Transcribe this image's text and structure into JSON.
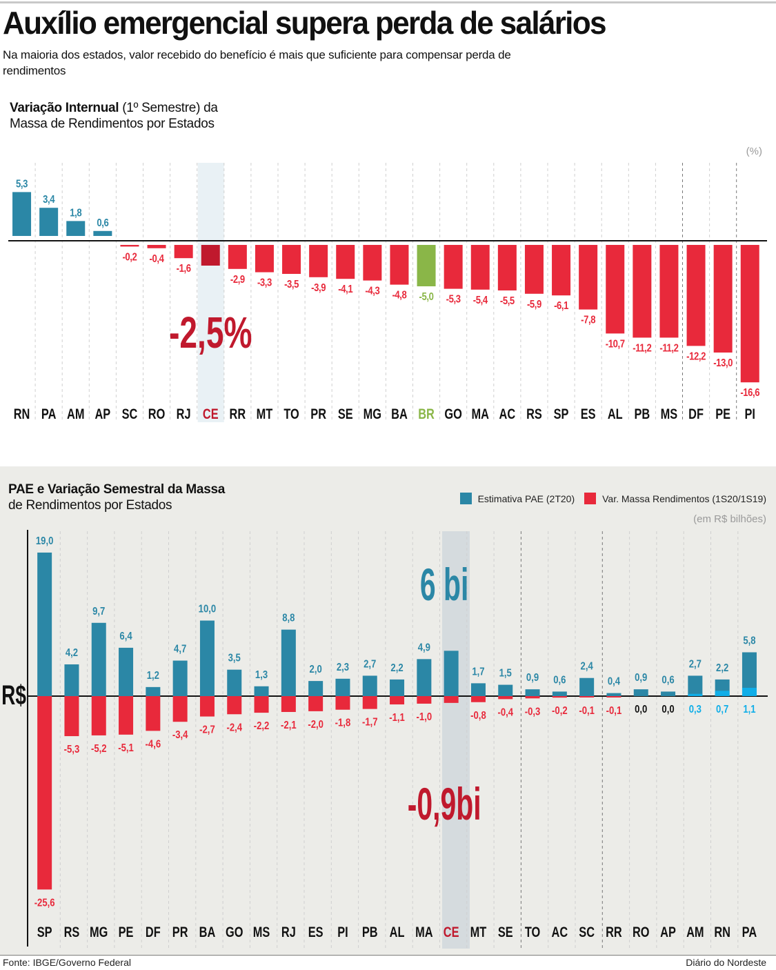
{
  "header": {
    "title": "Auxílio emergencial supera perda de salários",
    "subtitle": "Na maioria dos estados, valor recebido do benefício é mais que suficiente para compensar perda de rendimentos"
  },
  "footer": {
    "source": "Fonte: IBGE/Governo Federal",
    "credit": "Diário do Nordeste"
  },
  "colors": {
    "blue": "#2b87a6",
    "red": "#e8293b",
    "dark_red": "#c0192d",
    "green": "#8ab648",
    "light_blue": "#10aee8",
    "highlight_band_1": "#e9f1f5",
    "highlight_band_2": "#d5dbde",
    "panel_bg": "#ecece8"
  },
  "chart_data": [
    {
      "type": "bar",
      "title_bold": "Variação Internual",
      "title_rest": " (1º Semestre) da",
      "title_line2": "Massa de Rendimentos por Estados",
      "unit": "(%)",
      "xlabel": "",
      "ylabel": "",
      "ylim": [
        -16.6,
        5.3
      ],
      "grid": "vertical dashed",
      "highlight": "CE",
      "highlight_label": "-2,5%",
      "categories": [
        "RN",
        "PA",
        "AM",
        "AP",
        "SC",
        "RO",
        "RJ",
        "CE",
        "RR",
        "MT",
        "TO",
        "PR",
        "SE",
        "MG",
        "BA",
        "BR",
        "GO",
        "MA",
        "AC",
        "RS",
        "SP",
        "ES",
        "AL",
        "PB",
        "MS",
        "DF",
        "PE",
        "PI"
      ],
      "values": [
        5.3,
        3.4,
        1.8,
        0.6,
        -0.2,
        -0.4,
        -1.6,
        -2.5,
        -2.9,
        -3.3,
        -3.5,
        -3.9,
        -4.1,
        -4.3,
        -4.8,
        -5.0,
        -5.3,
        -5.4,
        -5.5,
        -5.9,
        -6.1,
        -7.8,
        -10.7,
        -11.2,
        -11.2,
        -12.2,
        -13.0,
        -16.6
      ],
      "labels": [
        "5,3",
        "3,4",
        "1,8",
        "0,6",
        "-0,2",
        "-0,4",
        "-1,6",
        "",
        "-2,9",
        "-3,3",
        "-3,5",
        "-3,9",
        "-4,1",
        "-4,3",
        "-4,8",
        "-5,0",
        "-5,3",
        "-5,4",
        "-5,5",
        "-5,9",
        "-6,1",
        "-7,8",
        "-10,7",
        "-11,2",
        "-11,2",
        "-12,2",
        "-13,0",
        "-16,6"
      ]
    },
    {
      "type": "bar",
      "title_bold": "PAE e Variação Semestral da Massa",
      "title_line2": "de Rendimentos por Estados",
      "unit": "(em R$ bilhões)",
      "axis_label": "R$",
      "ylim": [
        -25.6,
        19.0
      ],
      "grid": "vertical dashed",
      "highlight": "CE",
      "highlight_label_pae": "6 bi",
      "highlight_label_var": "-0,9bi",
      "legend": [
        "Estimativa PAE (2T20)",
        "Var. Massa Rendimentos (1S20/1S19)"
      ],
      "legend_position": "top-right",
      "categories": [
        "SP",
        "RS",
        "MG",
        "PE",
        "DF",
        "PR",
        "BA",
        "GO",
        "MS",
        "RJ",
        "ES",
        "PI",
        "PB",
        "AL",
        "MA",
        "CE",
        "MT",
        "SE",
        "TO",
        "AC",
        "SC",
        "RR",
        "RO",
        "AP",
        "AM",
        "RN",
        "PA"
      ],
      "series": [
        {
          "name": "Estimativa PAE (2T20)",
          "values": [
            19.0,
            4.2,
            9.7,
            6.4,
            1.2,
            4.7,
            10.0,
            3.5,
            1.3,
            8.8,
            2.0,
            2.3,
            2.7,
            2.2,
            4.9,
            6.0,
            1.7,
            1.5,
            0.9,
            0.6,
            2.4,
            0.4,
            0.9,
            0.6,
            2.7,
            2.2,
            5.8
          ],
          "labels": [
            "19,0",
            "4,2",
            "9,7",
            "6,4",
            "1,2",
            "4,7",
            "10,0",
            "3,5",
            "1,3",
            "8,8",
            "2,0",
            "2,3",
            "2,7",
            "2,2",
            "4,9",
            "",
            "1,7",
            "1,5",
            "0,9",
            "0,6",
            "2,4",
            "0,4",
            "0,9",
            "0,6",
            "2,7",
            "2,2",
            "5,8"
          ]
        },
        {
          "name": "Var. Massa Rendimentos (1S20/1S19)",
          "values": [
            -25.6,
            -5.3,
            -5.2,
            -5.1,
            -4.6,
            -3.4,
            -2.7,
            -2.4,
            -2.2,
            -2.1,
            -2.0,
            -1.8,
            -1.7,
            -1.1,
            -1.0,
            -0.9,
            -0.8,
            -0.4,
            -0.3,
            -0.2,
            -0.1,
            -0.1,
            0.0,
            0.0,
            0.3,
            0.7,
            1.1
          ],
          "labels": [
            "-25,6",
            "-5,3",
            "-5,2",
            "-5,1",
            "-4,6",
            "-3,4",
            "-2,7",
            "-2,4",
            "-2,2",
            "-2,1",
            "-2,0",
            "-1,8",
            "-1,7",
            "-1,1",
            "-1,0",
            "",
            "-0,8",
            "-0,4",
            "-0,3",
            "-0,2",
            "-0,1",
            "-0,1",
            "0,0",
            "0,0",
            "0,3",
            "0,7",
            "1,1"
          ]
        }
      ]
    }
  ]
}
